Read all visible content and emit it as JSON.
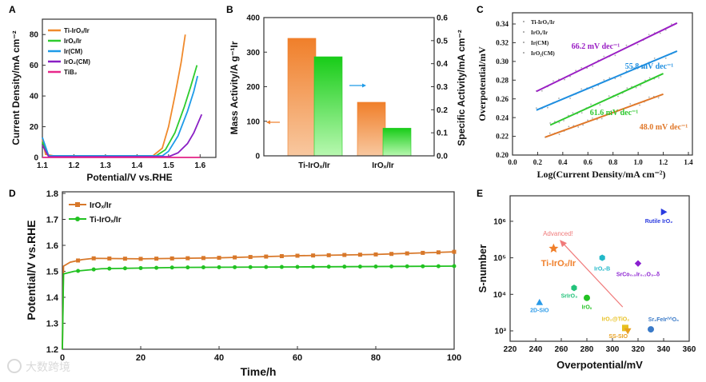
{
  "watermark": {
    "text": "大数跨境"
  },
  "chart_data": [
    {
      "panel": "A",
      "type": "line",
      "xlabel": "Potential/V vs.RHE",
      "ylabel": "Current Density/mA cm⁻²",
      "xlim": [
        1.1,
        1.65
      ],
      "ylim": [
        0,
        90
      ],
      "xticks": [
        "1.1",
        "1.2",
        "1.3",
        "1.4",
        "1.5",
        "1.6"
      ],
      "xtick_values": [
        1.1,
        1.2,
        1.3,
        1.4,
        1.5,
        1.6
      ],
      "yticks": [
        "0",
        "20",
        "40",
        "60",
        "80"
      ],
      "ytick_values": [
        0,
        20,
        40,
        60,
        80
      ],
      "legend": "top-left",
      "series": [
        {
          "name": "Ti-IrOₓ/Ir",
          "color": "#f08a2c",
          "points": [
            [
              1.1,
              12
            ],
            [
              1.11,
              2
            ],
            [
              1.15,
              0.5
            ],
            [
              1.45,
              1
            ],
            [
              1.48,
              6
            ],
            [
              1.5,
              20
            ],
            [
              1.52,
              40
            ],
            [
              1.54,
              62
            ],
            [
              1.553,
              80
            ]
          ]
        },
        {
          "name": "IrOₓ/Ir",
          "color": "#2ecc2e",
          "points": [
            [
              1.1,
              10
            ],
            [
              1.12,
              1
            ],
            [
              1.46,
              1
            ],
            [
              1.49,
              5
            ],
            [
              1.52,
              16
            ],
            [
              1.55,
              33
            ],
            [
              1.57,
              46
            ],
            [
              1.59,
              60
            ]
          ]
        },
        {
          "name": "Ir(CM)",
          "color": "#1e9be8",
          "points": [
            [
              1.1,
              13
            ],
            [
              1.12,
              1
            ],
            [
              1.48,
              1
            ],
            [
              1.5,
              4
            ],
            [
              1.53,
              14
            ],
            [
              1.56,
              30
            ],
            [
              1.58,
              43
            ],
            [
              1.592,
              53
            ]
          ]
        },
        {
          "name": "IrO₂(CM)",
          "color": "#8a1fc4",
          "points": [
            [
              1.1,
              8
            ],
            [
              1.12,
              0.5
            ],
            [
              1.5,
              0.5
            ],
            [
              1.53,
              3
            ],
            [
              1.56,
              9
            ],
            [
              1.58,
              16
            ],
            [
              1.605,
              28
            ]
          ]
        },
        {
          "name": "TiB₂",
          "color": "#e8288a",
          "points": [
            [
              1.1,
              0
            ],
            [
              1.6,
              0
            ]
          ]
        }
      ]
    },
    {
      "panel": "B",
      "type": "bar",
      "categories": [
        "Ti-IrOₓ/Ir",
        "IrOₓ/Ir"
      ],
      "ylabel": "Mass Activity/A g⁻¹Ir",
      "ylabel_right": "Specific Activity/mA cm⁻²",
      "ylim": [
        0,
        400
      ],
      "ylim_right": [
        0,
        0.6
      ],
      "yticks": [
        "0",
        "100",
        "200",
        "300",
        "400"
      ],
      "ytick_values": [
        0,
        100,
        200,
        300,
        400
      ],
      "yticks_right": [
        "0.0",
        "0.1",
        "0.2",
        "0.3",
        "0.4",
        "0.5",
        "0.6"
      ],
      "ytick_values_right": [
        0,
        0.1,
        0.2,
        0.3,
        0.4,
        0.5,
        0.6
      ],
      "series": [
        {
          "name": "Mass Activity",
          "axis": "left",
          "color": "#f07f2a",
          "values": [
            340,
            155
          ]
        },
        {
          "name": "Specific Activity",
          "axis": "right",
          "color": "#22cc22",
          "values": [
            0.43,
            0.12
          ]
        }
      ]
    },
    {
      "panel": "C",
      "type": "scatter",
      "xlabel": "Log(Current Density/mA cm⁻²)",
      "ylabel": "Overpotential/mV",
      "xlim": [
        0,
        1.4
      ],
      "ylim": [
        0.2,
        0.35
      ],
      "xticks": [
        "0.0",
        "0.2",
        "0.4",
        "0.6",
        "0.8",
        "1.0",
        "1.2",
        "1.4"
      ],
      "xtick_values": [
        0,
        0.2,
        0.4,
        0.6,
        0.8,
        1.0,
        1.2,
        1.4
      ],
      "yticks": [
        "0.20",
        "0.22",
        "0.24",
        "0.26",
        "0.28",
        "0.30",
        "0.32",
        "0.34"
      ],
      "ytick_values": [
        0.2,
        0.22,
        0.24,
        0.26,
        0.28,
        0.3,
        0.32,
        0.34
      ],
      "legend": "top-left",
      "series": [
        {
          "name": "Ti-IrOₓ/Ir",
          "color": "#e0782a",
          "fit": [
            [
              0.26,
              0.219
            ],
            [
              1.2,
              0.265
            ]
          ],
          "annotation": "48.0 mV dec⁻¹"
        },
        {
          "name": "IrOₓ/Ir",
          "color": "#2ec82e",
          "fit": [
            [
              0.3,
              0.232
            ],
            [
              1.2,
              0.287
            ]
          ],
          "annotation": "61.6 mV dec⁻¹"
        },
        {
          "name": "Ir(CM)",
          "color": "#1e8ee0",
          "fit": [
            [
              0.19,
              0.248
            ],
            [
              1.31,
              0.311
            ]
          ],
          "annotation": "55.8 mV dec⁻¹"
        },
        {
          "name": "IrO₂(CM)",
          "color": "#9a1fc4",
          "fit": [
            [
              0.19,
              0.268
            ],
            [
              1.31,
              0.341
            ]
          ],
          "annotation": "66.2 mV dec⁻¹"
        }
      ]
    },
    {
      "panel": "D",
      "type": "line",
      "xlabel": "Time/h",
      "ylabel": "Potential/V vs.RHE",
      "xlim": [
        0,
        100
      ],
      "ylim": [
        1.2,
        1.8
      ],
      "xticks": [
        "0",
        "20",
        "40",
        "60",
        "80",
        "100"
      ],
      "xtick_values": [
        0,
        20,
        40,
        60,
        80,
        100
      ],
      "yticks": [
        "1.2",
        "1.3",
        "1.4",
        "1.5",
        "1.6",
        "1.7",
        "1.8"
      ],
      "ytick_values": [
        1.2,
        1.3,
        1.4,
        1.5,
        1.6,
        1.7,
        1.8
      ],
      "legend": "top-left",
      "series": [
        {
          "name": "IrOₓ/Ir",
          "color": "#d8782a",
          "marker": "square",
          "points": [
            [
              0,
              1.2
            ],
            [
              0.3,
              1.52
            ],
            [
              2,
              1.535
            ],
            [
              5,
              1.545
            ],
            [
              8,
              1.55
            ],
            [
              20,
              1.548
            ],
            [
              40,
              1.552
            ],
            [
              60,
              1.56
            ],
            [
              80,
              1.565
            ],
            [
              100,
              1.575
            ]
          ]
        },
        {
          "name": "Ti-IrOₓ/Ir",
          "color": "#22c222",
          "marker": "circle",
          "points": [
            [
              0,
              1.2
            ],
            [
              0.3,
              1.49
            ],
            [
              3,
              1.5
            ],
            [
              10,
              1.51
            ],
            [
              30,
              1.515
            ],
            [
              60,
              1.517
            ],
            [
              100,
              1.52
            ]
          ]
        }
      ]
    },
    {
      "panel": "E",
      "type": "scatter",
      "xlabel": "Overpotential/mV",
      "ylabel": "S-number",
      "xlim": [
        220,
        360
      ],
      "ylim": [
        500,
        5000000
      ],
      "yscale": "log",
      "xticks": [
        "220",
        "240",
        "260",
        "280",
        "300",
        "320",
        "340",
        "360"
      ],
      "xtick_values": [
        220,
        240,
        260,
        280,
        300,
        320,
        340,
        360
      ],
      "yticks": [
        "10³",
        "10⁴",
        "10⁵",
        "10⁶"
      ],
      "ytick_values": [
        1000,
        10000,
        100000,
        1000000
      ],
      "annotation": {
        "text": "Advanced!",
        "color": "#f07a7a",
        "from": [
          308,
          4500
        ],
        "to": [
          260,
          280000
        ]
      },
      "points": [
        {
          "label": "2D-SIO",
          "x": 243,
          "y": 6000,
          "marker": "triangle",
          "color": "#2a9ae8"
        },
        {
          "label": "Ti-IrOₓ/Ir",
          "x": 254,
          "y": 180000,
          "marker": "star",
          "color": "#f07f2a"
        },
        {
          "label": "SrIrO₃",
          "x": 270,
          "y": 15000,
          "marker": "hexagon",
          "color": "#22c27a"
        },
        {
          "label": "IrOₓ",
          "x": 280,
          "y": 8000,
          "marker": "circle",
          "color": "#22c222"
        },
        {
          "label": "IrOₓ-B",
          "x": 292,
          "y": 100000,
          "marker": "hexagon",
          "color": "#22b8c8"
        },
        {
          "label": "SrCo₀.₉Ir₀.₁O₃₋δ",
          "x": 320,
          "y": 70000,
          "marker": "diamond",
          "color": "#8a1fd0"
        },
        {
          "label": "Rutile IrO₂",
          "x": 340,
          "y": 1800000,
          "marker": "right-triangle",
          "color": "#2a3ae0"
        },
        {
          "label": "IrO₂@TiO₂",
          "x": 310,
          "y": 1200,
          "marker": "square",
          "color": "#e8c020"
        },
        {
          "label": "SS-SIO",
          "x": 312,
          "y": 1000,
          "marker": "down-triangle",
          "color": "#e8a020"
        },
        {
          "label": "Sr₂FeIr⁽ⱽ⁾O₆",
          "x": 330,
          "y": 1100,
          "marker": "circle",
          "color": "#3a7ac8"
        }
      ]
    }
  ]
}
